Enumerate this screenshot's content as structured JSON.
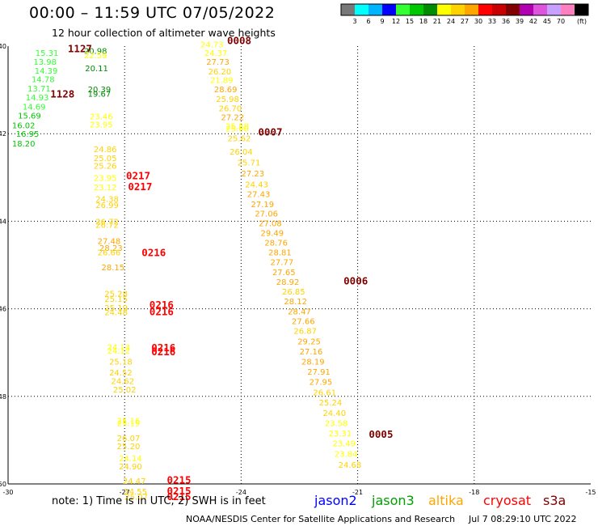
{
  "header": {
    "title": "00:00 – 11:59 UTC 07/05/2022",
    "subtitle": "12 hour collection of altimeter wave heights"
  },
  "colorbar": {
    "unit": "(ft)",
    "bins": [
      {
        "color": "#787878",
        "label": "3"
      },
      {
        "color": "#00ffff",
        "label": "6"
      },
      {
        "color": "#00b4ff",
        "label": "9"
      },
      {
        "color": "#0000ff",
        "label": "12"
      },
      {
        "color": "#33ff33",
        "label": "15"
      },
      {
        "color": "#00c800",
        "label": "18"
      },
      {
        "color": "#008c00",
        "label": "21"
      },
      {
        "color": "#ffff00",
        "label": "24"
      },
      {
        "color": "#ffd200",
        "label": "27"
      },
      {
        "color": "#ffa500",
        "label": "30"
      },
      {
        "color": "#ff0000",
        "label": "33"
      },
      {
        "color": "#c80000",
        "label": "36"
      },
      {
        "color": "#800000",
        "label": "39"
      },
      {
        "color": "#b000b0",
        "label": "42"
      },
      {
        "color": "#dd55dd",
        "label": "45"
      },
      {
        "color": "#c8a0ff",
        "label": "70"
      },
      {
        "color": "#ff80c0",
        "label": ""
      },
      {
        "color": "#000000",
        "label": ""
      }
    ]
  },
  "map": {
    "lon_ticks": [
      "-30",
      "-27",
      "-24",
      "-21",
      "-18",
      "-15"
    ],
    "lat_ticks": [
      "-40",
      "-42",
      "-44",
      "-46",
      "-48",
      "-50"
    ],
    "lon_range": [
      -30,
      -15
    ],
    "lat_range": [
      -40,
      -50
    ],
    "measurements": [
      {
        "lon": -29.0,
        "lat": -40.15,
        "v": "15.31",
        "c": "#33ff33"
      },
      {
        "lon": -29.05,
        "lat": -40.35,
        "v": "13.98",
        "c": "#33ff33"
      },
      {
        "lon": -29.02,
        "lat": -40.55,
        "v": "14.39",
        "c": "#33ff33"
      },
      {
        "lon": -29.1,
        "lat": -40.75,
        "v": "14.78",
        "c": "#33ff33"
      },
      {
        "lon": -29.2,
        "lat": -40.96,
        "v": "13.71",
        "c": "#33ff33"
      },
      {
        "lon": -29.25,
        "lat": -41.16,
        "v": "14.93",
        "c": "#33ff33"
      },
      {
        "lon": -29.33,
        "lat": -41.38,
        "v": "14.69",
        "c": "#33ff33"
      },
      {
        "lon": -29.45,
        "lat": -41.58,
        "v": "15.69",
        "c": "#00c800"
      },
      {
        "lon": -29.6,
        "lat": -41.8,
        "v": "16.02",
        "c": "#00c800"
      },
      {
        "lon": -29.5,
        "lat": -42.0,
        "v": "16.95",
        "c": "#00c800"
      },
      {
        "lon": -29.6,
        "lat": -42.22,
        "v": "18.20",
        "c": "#00c800"
      },
      {
        "lon": -27.75,
        "lat": -40.1,
        "v": "20.98",
        "c": "#008c00"
      },
      {
        "lon": -27.75,
        "lat": -40.2,
        "v": "22.59",
        "c": "#ffff00"
      },
      {
        "lon": -27.72,
        "lat": -40.5,
        "v": "20.11",
        "c": "#008c00"
      },
      {
        "lon": -27.65,
        "lat": -40.98,
        "v": "20.39",
        "c": "#008c00"
      },
      {
        "lon": -27.65,
        "lat": -41.08,
        "v": "19.67",
        "c": "#008c00"
      },
      {
        "lon": -27.6,
        "lat": -41.6,
        "v": "23.46",
        "c": "#ffff00"
      },
      {
        "lon": -27.6,
        "lat": -41.78,
        "v": "23.95",
        "c": "#ffff00"
      },
      {
        "lon": -27.5,
        "lat": -42.35,
        "v": "24.86",
        "c": "#ffd200"
      },
      {
        "lon": -27.5,
        "lat": -42.55,
        "v": "25.05",
        "c": "#ffd200"
      },
      {
        "lon": -27.5,
        "lat": -42.73,
        "v": "25.26",
        "c": "#ffd200"
      },
      {
        "lon": -27.5,
        "lat": -43.0,
        "v": "23.95",
        "c": "#ffff00"
      },
      {
        "lon": -27.5,
        "lat": -43.22,
        "v": "23.12",
        "c": "#ffff00"
      },
      {
        "lon": -27.45,
        "lat": -43.48,
        "v": "24.38",
        "c": "#ffd200"
      },
      {
        "lon": -27.45,
        "lat": -43.62,
        "v": "26.99",
        "c": "#ffd200"
      },
      {
        "lon": -27.45,
        "lat": -44.0,
        "v": "26.72",
        "c": "#ffd200"
      },
      {
        "lon": -27.45,
        "lat": -44.08,
        "v": "26.72",
        "c": "#ffd200"
      },
      {
        "lon": -27.4,
        "lat": -44.45,
        "v": "27.48",
        "c": "#ffa500"
      },
      {
        "lon": -27.35,
        "lat": -44.6,
        "v": "28.23",
        "c": "#ffa500"
      },
      {
        "lon": -27.4,
        "lat": -44.7,
        "v": "26.66",
        "c": "#ffd200"
      },
      {
        "lon": -27.3,
        "lat": -45.05,
        "v": "28.15",
        "c": "#ffa500"
      },
      {
        "lon": -27.22,
        "lat": -45.65,
        "v": "25.28",
        "c": "#ffd200"
      },
      {
        "lon": -27.22,
        "lat": -45.77,
        "v": "25.15",
        "c": "#ffd200"
      },
      {
        "lon": -27.22,
        "lat": -45.97,
        "v": "25.19",
        "c": "#ffd200"
      },
      {
        "lon": -27.22,
        "lat": -46.07,
        "v": "24.48",
        "c": "#ffd200"
      },
      {
        "lon": -27.15,
        "lat": -46.87,
        "v": "24.13",
        "c": "#ffff00"
      },
      {
        "lon": -27.15,
        "lat": -46.95,
        "v": "24.12",
        "c": "#ffff00"
      },
      {
        "lon": -27.1,
        "lat": -47.2,
        "v": "25.18",
        "c": "#ffd200"
      },
      {
        "lon": -27.1,
        "lat": -47.45,
        "v": "24.52",
        "c": "#ffd200"
      },
      {
        "lon": -27.05,
        "lat": -47.64,
        "v": "24.62",
        "c": "#ffd200"
      },
      {
        "lon": -27.0,
        "lat": -47.84,
        "v": "25.02",
        "c": "#ffd200"
      },
      {
        "lon": -26.9,
        "lat": -48.55,
        "v": "25.16",
        "c": "#ffff00"
      },
      {
        "lon": -26.9,
        "lat": -48.6,
        "v": "25.19",
        "c": "#ffff00"
      },
      {
        "lon": -26.9,
        "lat": -48.95,
        "v": "26.07",
        "c": "#ffd200"
      },
      {
        "lon": -26.9,
        "lat": -49.13,
        "v": "25.20",
        "c": "#ffd200"
      },
      {
        "lon": -26.85,
        "lat": -49.41,
        "v": "24.14",
        "c": "#ffff00"
      },
      {
        "lon": -26.85,
        "lat": -49.59,
        "v": "24.90",
        "c": "#ffd200"
      },
      {
        "lon": -26.75,
        "lat": -49.93,
        "v": "24.47",
        "c": "#ffd200"
      },
      {
        "lon": -26.72,
        "lat": -50.17,
        "v": "24.55",
        "c": "#ffd200"
      },
      {
        "lon": -26.7,
        "lat": -50.29,
        "v": "25.07",
        "c": "#ffd200"
      },
      {
        "lon": -24.75,
        "lat": -39.95,
        "v": "24.73",
        "c": "#ffff00"
      },
      {
        "lon": -24.65,
        "lat": -40.15,
        "v": "24.37",
        "c": "#ffff00"
      },
      {
        "lon": -24.6,
        "lat": -40.35,
        "v": "27.73",
        "c": "#ffa500"
      },
      {
        "lon": -24.55,
        "lat": -40.57,
        "v": "26.20",
        "c": "#ffd200"
      },
      {
        "lon": -24.5,
        "lat": -40.77,
        "v": "21.89",
        "c": "#ffff00"
      },
      {
        "lon": -24.4,
        "lat": -40.98,
        "v": "28.69",
        "c": "#ffa500"
      },
      {
        "lon": -24.35,
        "lat": -41.2,
        "v": "25.98",
        "c": "#ffd200"
      },
      {
        "lon": -24.28,
        "lat": -41.41,
        "v": "26.70",
        "c": "#ffd200"
      },
      {
        "lon": -24.22,
        "lat": -41.62,
        "v": "27.22",
        "c": "#ffa500"
      },
      {
        "lon": -24.1,
        "lat": -41.82,
        "v": "25.88",
        "c": "#ffff00"
      },
      {
        "lon": -24.1,
        "lat": -41.88,
        "v": "25.60",
        "c": "#ffff00"
      },
      {
        "lon": -24.05,
        "lat": -42.1,
        "v": "25.62",
        "c": "#ffd200"
      },
      {
        "lon": -24.0,
        "lat": -42.4,
        "v": "26.04",
        "c": "#ffd200"
      },
      {
        "lon": -23.8,
        "lat": -42.65,
        "v": "25.71",
        "c": "#ffd200"
      },
      {
        "lon": -23.7,
        "lat": -42.9,
        "v": "27.23",
        "c": "#ffa500"
      },
      {
        "lon": -23.6,
        "lat": -43.15,
        "v": "24.43",
        "c": "#ffd200"
      },
      {
        "lon": -23.55,
        "lat": -43.37,
        "v": "27.43",
        "c": "#ffa500"
      },
      {
        "lon": -23.45,
        "lat": -43.6,
        "v": "27.19",
        "c": "#ffa500"
      },
      {
        "lon": -23.35,
        "lat": -43.82,
        "v": "27.06",
        "c": "#ffa500"
      },
      {
        "lon": -23.25,
        "lat": -44.04,
        "v": "27.08",
        "c": "#ffa500"
      },
      {
        "lon": -23.2,
        "lat": -44.26,
        "v": "29.49",
        "c": "#ffa500"
      },
      {
        "lon": -23.1,
        "lat": -44.48,
        "v": "28.76",
        "c": "#ffa500"
      },
      {
        "lon": -23.0,
        "lat": -44.7,
        "v": "28.81",
        "c": "#ffa500"
      },
      {
        "lon": -22.95,
        "lat": -44.93,
        "v": "27.77",
        "c": "#ffa500"
      },
      {
        "lon": -22.9,
        "lat": -45.16,
        "v": "27.65",
        "c": "#ffa500"
      },
      {
        "lon": -22.8,
        "lat": -45.38,
        "v": "28.92",
        "c": "#ffa500"
      },
      {
        "lon": -22.65,
        "lat": -45.6,
        "v": "26.85",
        "c": "#ffd200"
      },
      {
        "lon": -22.6,
        "lat": -45.82,
        "v": "28.12",
        "c": "#ffa500"
      },
      {
        "lon": -22.5,
        "lat": -46.05,
        "v": "28.47",
        "c": "#ffa500"
      },
      {
        "lon": -22.4,
        "lat": -46.28,
        "v": "27.66",
        "c": "#ffa500"
      },
      {
        "lon": -22.35,
        "lat": -46.5,
        "v": "26.87",
        "c": "#ffd200"
      },
      {
        "lon": -22.25,
        "lat": -46.74,
        "v": "29.25",
        "c": "#ffa500"
      },
      {
        "lon": -22.2,
        "lat": -46.97,
        "v": "27.16",
        "c": "#ffa500"
      },
      {
        "lon": -22.15,
        "lat": -47.2,
        "v": "28.19",
        "c": "#ffa500"
      },
      {
        "lon": -22.0,
        "lat": -47.43,
        "v": "27.91",
        "c": "#ffa500"
      },
      {
        "lon": -21.95,
        "lat": -47.66,
        "v": "27.95",
        "c": "#ffa500"
      },
      {
        "lon": -21.85,
        "lat": -47.9,
        "v": "26.61",
        "c": "#ffd200"
      },
      {
        "lon": -21.7,
        "lat": -48.13,
        "v": "25.24",
        "c": "#ffd200"
      },
      {
        "lon": -21.6,
        "lat": -48.37,
        "v": "24.40",
        "c": "#ffd200"
      },
      {
        "lon": -21.55,
        "lat": -48.6,
        "v": "23.58",
        "c": "#ffff00"
      },
      {
        "lon": -21.45,
        "lat": -48.84,
        "v": "23.31",
        "c": "#ffff00"
      },
      {
        "lon": -21.35,
        "lat": -49.07,
        "v": "23.49",
        "c": "#ffff00"
      },
      {
        "lon": -21.3,
        "lat": -49.31,
        "v": "23.84",
        "c": "#ffff00"
      },
      {
        "lon": -21.2,
        "lat": -49.56,
        "v": "24.68",
        "c": "#ffd200"
      }
    ],
    "passes": [
      {
        "lon": -28.15,
        "lat": -40.05,
        "v": "1127",
        "c": "#800000"
      },
      {
        "lon": -28.6,
        "lat": -41.08,
        "v": "1128",
        "c": "#800000"
      },
      {
        "lon": -24.05,
        "lat": -39.86,
        "v": "0008",
        "c": "#800000"
      },
      {
        "lon": -23.25,
        "lat": -41.95,
        "v": "0007",
        "c": "#800000"
      },
      {
        "lon": -26.65,
        "lat": -42.95,
        "v": "0217",
        "c": "#ff0000"
      },
      {
        "lon": -26.6,
        "lat": -43.2,
        "v": "0217",
        "c": "#ff0000"
      },
      {
        "lon": -26.25,
        "lat": -44.7,
        "v": "0216",
        "c": "#ff0000"
      },
      {
        "lon": -26.05,
        "lat": -45.9,
        "v": "0216",
        "c": "#ff0000"
      },
      {
        "lon": -26.05,
        "lat": -46.05,
        "v": "0216",
        "c": "#ff0000"
      },
      {
        "lon": -26.0,
        "lat": -46.88,
        "v": "0216",
        "c": "#ff0000"
      },
      {
        "lon": -26.0,
        "lat": -46.97,
        "v": "0216",
        "c": "#ff0000"
      },
      {
        "lon": -21.05,
        "lat": -45.35,
        "v": "0006",
        "c": "#800000"
      },
      {
        "lon": -20.4,
        "lat": -48.85,
        "v": "0005",
        "c": "#800000"
      },
      {
        "lon": -25.6,
        "lat": -49.9,
        "v": "0215",
        "c": "#ff0000"
      },
      {
        "lon": -25.6,
        "lat": -50.15,
        "v": "0215",
        "c": "#ff0000"
      },
      {
        "lon": -25.6,
        "lat": -50.28,
        "v": "0215",
        "c": "#ff0000"
      }
    ]
  },
  "footer": {
    "note": "note: 1) Time is in UTC; 2) SWH is in feet",
    "satellites": {
      "jason2": {
        "label": "jason2",
        "color": "#0000ff"
      },
      "jason3": {
        "label": "jason3",
        "color": "#00a000"
      },
      "altika": {
        "label": "altika",
        "color": "#ffa500"
      },
      "cryosat": {
        "label": "cryosat",
        "color": "#ff0000"
      },
      "s3a": {
        "label": "s3a",
        "color": "#800000"
      }
    },
    "credit": "NOAA/NESDIS Center for Satellite Applications and Research",
    "timestamp": "Jul  7 08:29:10 UTC 2022"
  }
}
